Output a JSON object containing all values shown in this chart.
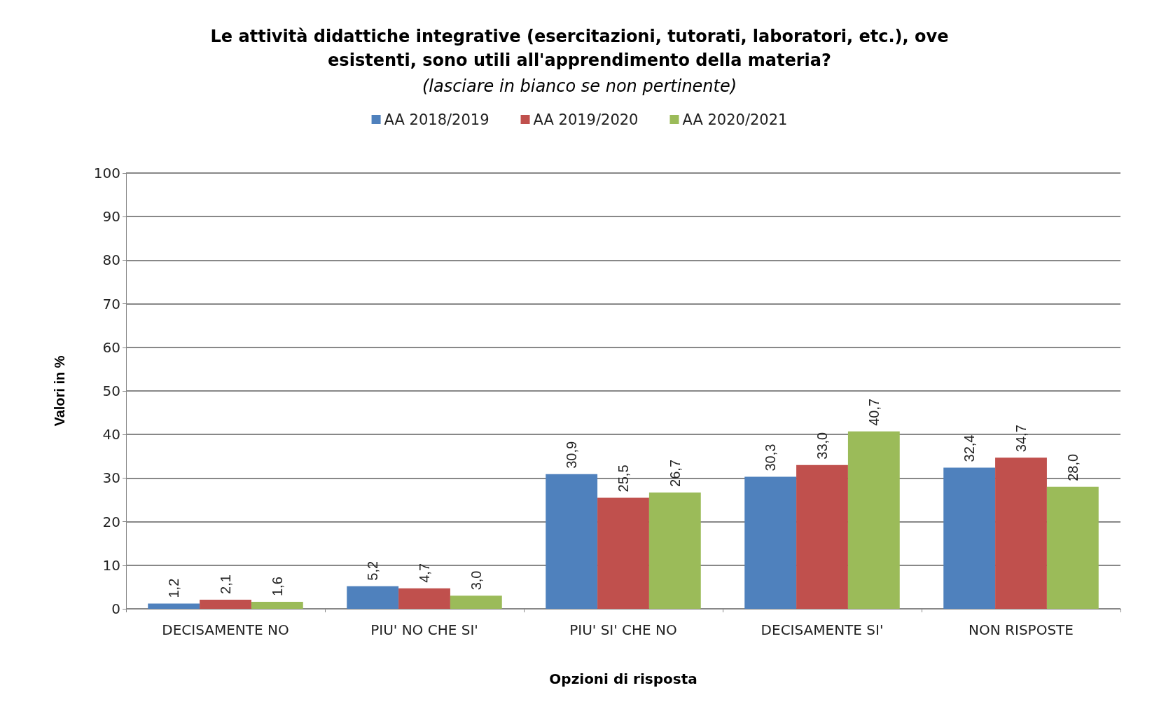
{
  "chart_data": {
    "type": "bar",
    "title": "Le attività didattiche integrative (esercitazioni, tutorati, laboratori, etc.), ove\nesistenti, sono utili all'apprendimento della materia?",
    "subtitle": "(lasciare in bianco se non pertinente)",
    "xlabel": "Opzioni di risposta",
    "ylabel": "Valori in %",
    "categories": [
      "DECISAMENTE NO",
      "PIU' NO CHE SI'",
      "PIU' SI' CHE NO",
      "DECISAMENTE SI'",
      "NON RISPOSTE"
    ],
    "series": [
      {
        "name": "AA 2018/2019",
        "color": "#4f81bd",
        "values": [
          1.2,
          5.2,
          30.9,
          30.3,
          32.4
        ],
        "value_labels": [
          "1,2",
          "5,2",
          "30,9",
          "30,3",
          "32,4"
        ]
      },
      {
        "name": "AA 2019/2020",
        "color": "#c0504d",
        "values": [
          2.1,
          4.7,
          25.5,
          33.0,
          34.7
        ],
        "value_labels": [
          "2,1",
          "4,7",
          "25,5",
          "33,0",
          "34,7"
        ]
      },
      {
        "name": "AA 2020/2021",
        "color": "#9bbb59",
        "values": [
          1.6,
          3.0,
          26.7,
          40.7,
          28.0
        ],
        "value_labels": [
          "1,6",
          "3,0",
          "26,7",
          "40,7",
          "28,0"
        ]
      }
    ],
    "ylim": [
      0,
      100
    ],
    "yticks": [
      0,
      10,
      20,
      30,
      40,
      50,
      60,
      70,
      80,
      90,
      100
    ],
    "grid": "y",
    "legend": "top"
  }
}
